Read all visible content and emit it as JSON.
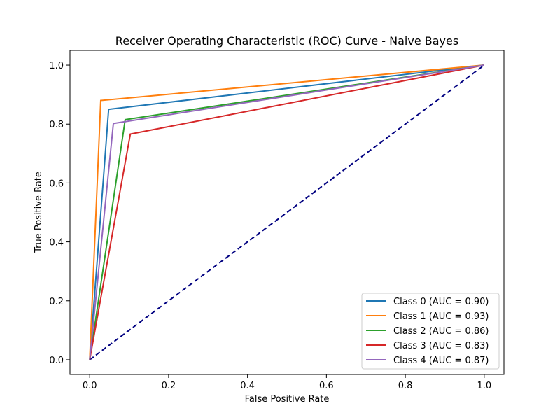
{
  "chart_data": {
    "type": "line",
    "title": "Receiver Operating Characteristic (ROC) Curve - Naive Bayes",
    "xlabel": "False Positive Rate",
    "ylabel": "True Positive Rate",
    "xlim": [
      -0.05,
      1.05
    ],
    "ylim": [
      -0.05,
      1.05
    ],
    "xticks": [
      0.0,
      0.2,
      0.4,
      0.6,
      0.8,
      1.0
    ],
    "yticks": [
      0.0,
      0.2,
      0.4,
      0.6,
      0.8,
      1.0
    ],
    "xtick_labels": [
      "0.0",
      "0.2",
      "0.4",
      "0.6",
      "0.8",
      "1.0"
    ],
    "ytick_labels": [
      "0.0",
      "0.2",
      "0.4",
      "0.6",
      "0.8",
      "1.0"
    ],
    "grid": false,
    "legend_position": "lower-right",
    "series": [
      {
        "name": "Class 0 (AUC = 0.90)",
        "color": "#1f77b4",
        "x": [
          0,
          0.048,
          1
        ],
        "y": [
          0,
          0.85,
          1
        ]
      },
      {
        "name": "Class 1 (AUC = 0.93)",
        "color": "#ff7f0e",
        "x": [
          0,
          0.028,
          1
        ],
        "y": [
          0,
          0.88,
          1
        ]
      },
      {
        "name": "Class 2 (AUC = 0.86)",
        "color": "#2ca02c",
        "x": [
          0,
          0.09,
          1
        ],
        "y": [
          0,
          0.815,
          1
        ]
      },
      {
        "name": "Class 3 (AUC = 0.83)",
        "color": "#d62728",
        "x": [
          0,
          0.103,
          1
        ],
        "y": [
          0,
          0.766,
          1
        ]
      },
      {
        "name": "Class 4 (AUC = 0.87)",
        "color": "#9467bd",
        "x": [
          0,
          0.06,
          1
        ],
        "y": [
          0,
          0.802,
          1
        ]
      }
    ],
    "reference_line": {
      "x": [
        0,
        1
      ],
      "y": [
        0,
        1
      ],
      "color": "#000080",
      "style": "dashed"
    }
  }
}
